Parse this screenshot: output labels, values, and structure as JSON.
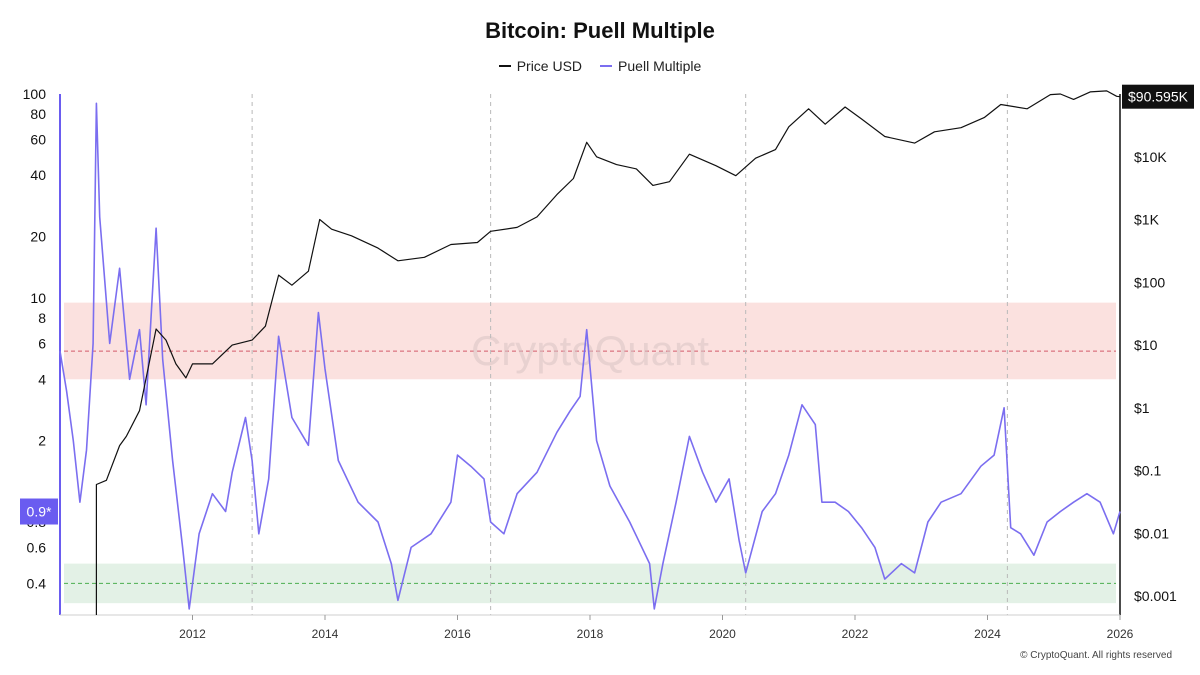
{
  "chart_data": {
    "type": "line",
    "title": "Bitcoin: Puell Multiple",
    "legend": [
      "Price USD",
      "Puell Multiple"
    ],
    "colors": {
      "price": "#111111",
      "puell": "#7b6ef0",
      "high_band": "#fbe1df",
      "high_line": "#d35b6b",
      "low_band": "#e3f1e6",
      "low_line": "#4caf50",
      "accent": "#6a5cf0"
    },
    "x_axis": {
      "ticks": [
        "2012",
        "2014",
        "2016",
        "2018",
        "2020",
        "2022",
        "2024",
        "2026"
      ],
      "range": [
        2010.0,
        2026.0
      ]
    },
    "left_axis": {
      "scale": "log",
      "ticks": [
        "100",
        "80",
        "60",
        "40",
        "20",
        "10",
        "8",
        "6",
        "4",
        "2",
        "0.8",
        "0.6",
        "0.4"
      ],
      "range": [
        0.28,
        100
      ]
    },
    "right_axis": {
      "scale": "log",
      "ticks": [
        "$10K",
        "$1K",
        "$100",
        "$10",
        "$1",
        "$0.1",
        "$0.01",
        "$0.001"
      ],
      "range": [
        0.0005,
        100000
      ]
    },
    "current_price_label": "$90.595K",
    "current_puell_label": "0.9*",
    "halving_lines": [
      2012.9,
      2016.5,
      2020.35,
      2024.3
    ],
    "zones": {
      "high": [
        4.0,
        9.5
      ],
      "high_line": 5.5,
      "low": [
        0.32,
        0.5
      ],
      "low_line": 0.4
    },
    "series": [
      {
        "name": "Price USD",
        "axis": "right",
        "points": [
          [
            2010.55,
            0.0005
          ],
          [
            2010.55,
            0.06
          ],
          [
            2010.7,
            0.07
          ],
          [
            2010.9,
            0.25
          ],
          [
            2011.0,
            0.35
          ],
          [
            2011.2,
            0.9
          ],
          [
            2011.45,
            18
          ],
          [
            2011.6,
            12
          ],
          [
            2011.75,
            5
          ],
          [
            2011.9,
            3
          ],
          [
            2012.0,
            5
          ],
          [
            2012.3,
            5
          ],
          [
            2012.6,
            10
          ],
          [
            2012.9,
            12
          ],
          [
            2013.1,
            20
          ],
          [
            2013.3,
            130
          ],
          [
            2013.5,
            90
          ],
          [
            2013.75,
            150
          ],
          [
            2013.92,
            1000
          ],
          [
            2014.1,
            700
          ],
          [
            2014.4,
            550
          ],
          [
            2014.8,
            350
          ],
          [
            2015.1,
            220
          ],
          [
            2015.5,
            250
          ],
          [
            2015.9,
            400
          ],
          [
            2016.3,
            430
          ],
          [
            2016.5,
            650
          ],
          [
            2016.9,
            750
          ],
          [
            2017.2,
            1100
          ],
          [
            2017.5,
            2500
          ],
          [
            2017.75,
            4500
          ],
          [
            2017.95,
            17000
          ],
          [
            2018.1,
            10000
          ],
          [
            2018.4,
            7500
          ],
          [
            2018.7,
            6400
          ],
          [
            2018.95,
            3500
          ],
          [
            2019.2,
            4000
          ],
          [
            2019.5,
            11000
          ],
          [
            2019.9,
            7200
          ],
          [
            2020.2,
            5000
          ],
          [
            2020.5,
            9500
          ],
          [
            2020.8,
            13000
          ],
          [
            2021.0,
            30000
          ],
          [
            2021.3,
            58000
          ],
          [
            2021.55,
            33000
          ],
          [
            2021.85,
            62000
          ],
          [
            2022.1,
            40000
          ],
          [
            2022.45,
            21000
          ],
          [
            2022.9,
            16500
          ],
          [
            2023.2,
            25000
          ],
          [
            2023.6,
            29000
          ],
          [
            2023.95,
            42000
          ],
          [
            2024.2,
            68000
          ],
          [
            2024.6,
            58000
          ],
          [
            2024.95,
            98000
          ],
          [
            2025.1,
            100000
          ],
          [
            2025.3,
            82000
          ],
          [
            2025.55,
            108000
          ],
          [
            2025.8,
            112000
          ],
          [
            2025.95,
            92000
          ],
          [
            2026.0,
            90595
          ]
        ]
      },
      {
        "name": "Puell Multiple",
        "axis": "left",
        "points": [
          [
            2010.0,
            5.5
          ],
          [
            2010.1,
            3.5
          ],
          [
            2010.2,
            2.0
          ],
          [
            2010.3,
            1.0
          ],
          [
            2010.4,
            1.8
          ],
          [
            2010.5,
            6.0
          ],
          [
            2010.55,
            90
          ],
          [
            2010.6,
            25
          ],
          [
            2010.75,
            6
          ],
          [
            2010.9,
            14
          ],
          [
            2011.05,
            4
          ],
          [
            2011.2,
            7
          ],
          [
            2011.3,
            3
          ],
          [
            2011.45,
            22
          ],
          [
            2011.55,
            5
          ],
          [
            2011.7,
            1.6
          ],
          [
            2011.85,
            0.6
          ],
          [
            2011.95,
            0.3
          ],
          [
            2012.1,
            0.7
          ],
          [
            2012.3,
            1.1
          ],
          [
            2012.5,
            0.9
          ],
          [
            2012.6,
            1.4
          ],
          [
            2012.8,
            2.6
          ],
          [
            2012.9,
            1.6
          ],
          [
            2013.0,
            0.7
          ],
          [
            2013.15,
            1.3
          ],
          [
            2013.3,
            6.5
          ],
          [
            2013.5,
            2.6
          ],
          [
            2013.75,
            1.9
          ],
          [
            2013.9,
            8.5
          ],
          [
            2014.0,
            4.5
          ],
          [
            2014.2,
            1.6
          ],
          [
            2014.5,
            1.0
          ],
          [
            2014.8,
            0.8
          ],
          [
            2015.0,
            0.5
          ],
          [
            2015.1,
            0.33
          ],
          [
            2015.3,
            0.6
          ],
          [
            2015.6,
            0.7
          ],
          [
            2015.9,
            1.0
          ],
          [
            2016.0,
            1.7
          ],
          [
            2016.2,
            1.5
          ],
          [
            2016.4,
            1.3
          ],
          [
            2016.5,
            0.8
          ],
          [
            2016.7,
            0.7
          ],
          [
            2016.9,
            1.1
          ],
          [
            2017.2,
            1.4
          ],
          [
            2017.5,
            2.2
          ],
          [
            2017.7,
            2.8
          ],
          [
            2017.85,
            3.3
          ],
          [
            2017.95,
            7.0
          ],
          [
            2018.1,
            2.0
          ],
          [
            2018.3,
            1.2
          ],
          [
            2018.6,
            0.8
          ],
          [
            2018.9,
            0.5
          ],
          [
            2018.97,
            0.3
          ],
          [
            2019.1,
            0.5
          ],
          [
            2019.3,
            1.0
          ],
          [
            2019.5,
            2.1
          ],
          [
            2019.7,
            1.4
          ],
          [
            2019.9,
            1.0
          ],
          [
            2020.1,
            1.3
          ],
          [
            2020.25,
            0.65
          ],
          [
            2020.35,
            0.45
          ],
          [
            2020.6,
            0.9
          ],
          [
            2020.8,
            1.1
          ],
          [
            2021.0,
            1.7
          ],
          [
            2021.2,
            3.0
          ],
          [
            2021.4,
            2.4
          ],
          [
            2021.5,
            1.0
          ],
          [
            2021.7,
            1.0
          ],
          [
            2021.9,
            0.9
          ],
          [
            2022.1,
            0.75
          ],
          [
            2022.3,
            0.6
          ],
          [
            2022.45,
            0.42
          ],
          [
            2022.7,
            0.5
          ],
          [
            2022.9,
            0.45
          ],
          [
            2023.1,
            0.8
          ],
          [
            2023.3,
            1.0
          ],
          [
            2023.6,
            1.1
          ],
          [
            2023.9,
            1.5
          ],
          [
            2024.1,
            1.7
          ],
          [
            2024.25,
            2.9
          ],
          [
            2024.35,
            0.75
          ],
          [
            2024.5,
            0.7
          ],
          [
            2024.7,
            0.55
          ],
          [
            2024.9,
            0.8
          ],
          [
            2025.1,
            0.9
          ],
          [
            2025.3,
            1.0
          ],
          [
            2025.5,
            1.1
          ],
          [
            2025.7,
            1.0
          ],
          [
            2025.9,
            0.7
          ],
          [
            2026.0,
            0.9
          ]
        ]
      }
    ],
    "watermark": "CryptoQuant"
  },
  "copyright": "© CryptoQuant. All rights reserved"
}
